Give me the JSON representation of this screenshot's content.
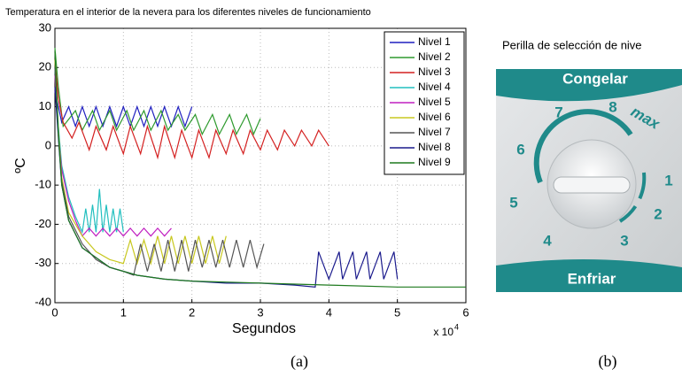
{
  "chart_data": {
    "type": "line",
    "title": "Temperatura en el interior de la nevera para los diferentes niveles de funcionamiento",
    "xlabel": "Segundos",
    "ylabel": "ºC",
    "x_scale_label": "x 10",
    "x_scale_exponent": "4",
    "xlim": [
      0,
      6
    ],
    "xticks": [
      0,
      1,
      2,
      3,
      4,
      5,
      6
    ],
    "ylim": [
      -40,
      30
    ],
    "yticks": [
      -40,
      -30,
      -20,
      -10,
      0,
      10,
      20,
      30
    ],
    "grid": true,
    "legend": "top-right",
    "series": [
      {
        "name": "Nivel 1",
        "color": "#1f1fbf",
        "x": [
          0,
          0.05,
          0.1,
          0.2,
          0.3,
          0.4,
          0.5,
          0.6,
          0.7,
          0.8,
          0.9,
          1.0,
          1.1,
          1.2,
          1.3,
          1.4,
          1.5,
          1.6,
          1.7,
          1.8,
          1.9,
          2.0
        ],
        "values": [
          14,
          10,
          6,
          10,
          5,
          10,
          5,
          10,
          5,
          10,
          5,
          10,
          5,
          10,
          5,
          10,
          5,
          10,
          5,
          10,
          5,
          10
        ]
      },
      {
        "name": "Nivel 2",
        "color": "#2e9a2e",
        "x": [
          0,
          0.05,
          0.12,
          0.3,
          0.4,
          0.55,
          0.65,
          0.8,
          0.9,
          1.05,
          1.15,
          1.3,
          1.4,
          1.55,
          1.65,
          1.8,
          1.9,
          2.05,
          2.15,
          2.3,
          2.4,
          2.55,
          2.65,
          2.8,
          2.9,
          3.0
        ],
        "values": [
          25,
          15,
          5,
          9,
          4,
          9,
          4,
          9,
          4,
          9,
          4,
          9,
          4,
          9,
          4,
          8,
          4,
          8,
          3,
          8,
          3,
          8,
          3,
          8,
          3,
          7
        ]
      },
      {
        "name": "Nivel 3",
        "color": "#d42020",
        "x": [
          0,
          0.05,
          0.12,
          0.25,
          0.35,
          0.5,
          0.6,
          0.75,
          0.85,
          1.0,
          1.1,
          1.25,
          1.35,
          1.5,
          1.6,
          1.75,
          1.85,
          2.0,
          2.1,
          2.25,
          2.35,
          2.5,
          2.6,
          2.75,
          2.85,
          3.0,
          3.1,
          3.25,
          3.35,
          3.5,
          3.6,
          3.75,
          3.85,
          4.0
        ],
        "values": [
          22,
          12,
          6,
          2,
          6,
          -1,
          5,
          -1,
          5,
          -2,
          5,
          -2,
          5,
          -3,
          5,
          -3,
          4,
          -3,
          4,
          -3,
          4,
          -2,
          4,
          -2,
          4,
          -1,
          4,
          -1,
          4,
          0,
          4,
          0,
          4,
          0
        ]
      },
      {
        "name": "Nivel 4",
        "color": "#22bfbf",
        "x": [
          0,
          0.05,
          0.1,
          0.2,
          0.3,
          0.4,
          0.45,
          0.5,
          0.55,
          0.6,
          0.65,
          0.7,
          0.75,
          0.8,
          0.85,
          0.9,
          0.95,
          1.0
        ],
        "values": [
          20,
          5,
          -5,
          -13,
          -18,
          -22,
          -16,
          -22,
          -15,
          -22,
          -11,
          -22,
          -15,
          -22,
          -16,
          -22,
          -16,
          -22
        ]
      },
      {
        "name": "Nivel 5",
        "color": "#c020c0",
        "x": [
          0,
          0.05,
          0.1,
          0.2,
          0.3,
          0.4,
          0.5,
          0.6,
          0.7,
          0.8,
          0.9,
          1.0,
          1.1,
          1.2,
          1.3,
          1.4,
          1.5,
          1.6,
          1.7
        ],
        "values": [
          18,
          3,
          -6,
          -14,
          -19,
          -23,
          -21,
          -23,
          -21,
          -23,
          -21,
          -23,
          -21,
          -23,
          -21,
          -23,
          -21,
          -23,
          -21
        ]
      },
      {
        "name": "Nivel 6",
        "color": "#c8c820",
        "x": [
          0,
          0.05,
          0.1,
          0.2,
          0.4,
          0.6,
          0.8,
          1.0,
          1.1,
          1.2,
          1.3,
          1.4,
          1.5,
          1.6,
          1.7,
          1.8,
          1.9,
          2.0,
          2.1,
          2.2,
          2.3,
          2.4,
          2.5
        ],
        "values": [
          22,
          4,
          -8,
          -17,
          -23,
          -27,
          -29,
          -30,
          -24,
          -30,
          -24,
          -30,
          -23,
          -30,
          -23,
          -30,
          -23,
          -30,
          -23,
          -30,
          -23,
          -30,
          -23
        ]
      },
      {
        "name": "Nivel 7",
        "color": "#555555",
        "x": [
          0,
          0.05,
          0.1,
          0.2,
          0.4,
          0.6,
          0.8,
          1.0,
          1.15,
          1.25,
          1.35,
          1.45,
          1.55,
          1.65,
          1.75,
          1.85,
          1.95,
          2.05,
          2.15,
          2.25,
          2.35,
          2.45,
          2.55,
          2.65,
          2.75,
          2.85,
          2.95,
          3.05
        ],
        "values": [
          20,
          3,
          -9,
          -18,
          -25,
          -29,
          -31,
          -32,
          -33,
          -25,
          -32,
          -25,
          -32,
          -24,
          -32,
          -24,
          -32,
          -24,
          -31,
          -24,
          -31,
          -24,
          -31,
          -24,
          -31,
          -24,
          -31,
          -25
        ]
      },
      {
        "name": "Nivel 8",
        "color": "#1a1a8c",
        "x": [
          0,
          0.05,
          0.1,
          0.2,
          0.4,
          0.8,
          1.2,
          1.6,
          2.0,
          2.5,
          3.0,
          3.5,
          3.8,
          3.85,
          4.0,
          4.15,
          4.2,
          4.35,
          4.4,
          4.55,
          4.6,
          4.75,
          4.8,
          4.95,
          5.0
        ],
        "values": [
          15,
          2,
          -10,
          -19,
          -26,
          -31,
          -33,
          -34,
          -34.5,
          -35,
          -35,
          -35.5,
          -36,
          -27,
          -34,
          -27,
          -34,
          -27,
          -34,
          -27,
          -34,
          -27,
          -34,
          -27,
          -34
        ]
      },
      {
        "name": "Nivel 9",
        "color": "#1f7a1f",
        "x": [
          0,
          0.05,
          0.1,
          0.2,
          0.4,
          0.8,
          1.2,
          1.6,
          2.0,
          3.0,
          4.0,
          5.0,
          6.0
        ],
        "values": [
          24,
          3,
          -10,
          -19,
          -26,
          -31,
          -33,
          -34,
          -34.5,
          -35,
          -35.5,
          -36,
          -36
        ]
      }
    ]
  },
  "photo": {
    "caption": "Perilla de selección de nive",
    "top_label": "Congelar",
    "bottom_label": "Enfriar",
    "dial_numbers": [
      "1",
      "2",
      "3",
      "4",
      "5",
      "6",
      "7",
      "8"
    ],
    "max_label": "max"
  },
  "panel_labels": [
    "(a)",
    "(b)"
  ]
}
